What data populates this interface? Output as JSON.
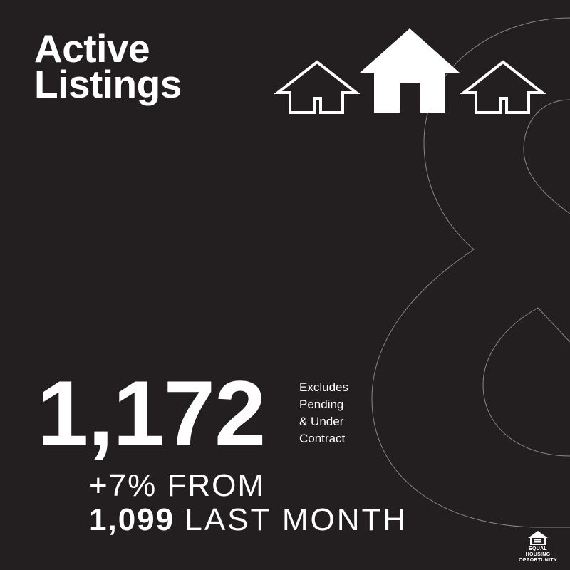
{
  "title": {
    "line1": "Active",
    "line2": "Listings"
  },
  "background_numeral": "8",
  "icons": [
    "house-outline-icon",
    "house-solid-icon",
    "house-outline-icon",
    "equal-housing-opportunity-logo"
  ],
  "stat": {
    "value": "1,172",
    "note_lines": [
      "Excludes",
      "Pending",
      "& Under",
      "Contract"
    ],
    "change_line": "+7% FROM",
    "previous_value": "1,099",
    "previous_label": "LAST MONTH"
  },
  "logo_text": "EQUAL HOUSING OPPORTUNITY",
  "colors": {
    "background": "#231f20",
    "text": "#ffffff",
    "numeral_outline": "#8a8788"
  }
}
